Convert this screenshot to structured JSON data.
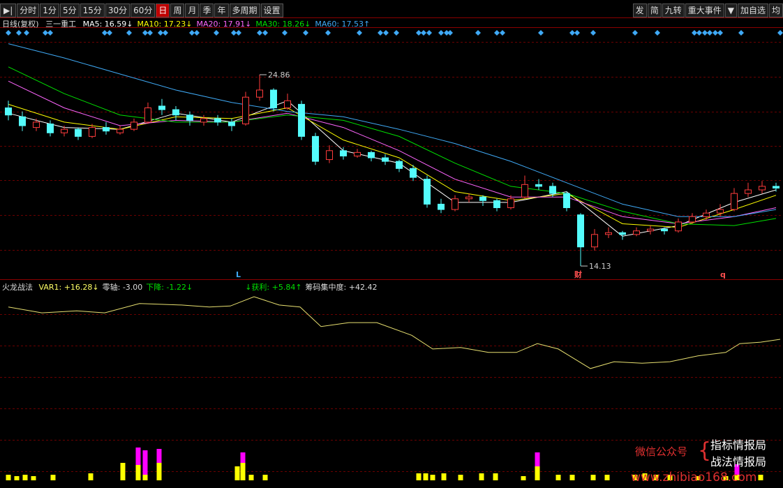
{
  "toolbar": {
    "left": [
      "分时",
      "1分",
      "5分",
      "15分",
      "30分",
      "60分",
      "日",
      "周",
      "月",
      "季",
      "年",
      "多周期",
      "设置"
    ],
    "active": "日",
    "right": [
      "发",
      "简",
      "九转",
      "重大事件",
      "加自选",
      "均"
    ]
  },
  "header": {
    "period": "日线(复权)",
    "stock": "三一重工",
    "ma_lines": [
      {
        "label": "MA5: 16.59↓",
        "color": "#ffffff",
        "values": [
          22.7,
          21.9,
          21.8,
          22.7,
          22.2,
          23.4,
          20.6,
          19.9,
          17.7,
          17.7,
          18.3,
          15.8,
          16.4,
          17.7,
          18.4
        ]
      },
      {
        "label": "MA10: 17.23↓",
        "color": "#ffff00",
        "values": [
          23.2,
          22.2,
          21.8,
          22.5,
          22.4,
          23.0,
          21.2,
          20.2,
          18.3,
          17.8,
          18.2,
          16.5,
          16.3,
          17.3,
          18.1
        ]
      },
      {
        "label": "MA20: 17.91↓",
        "color": "#ff66ff",
        "values": [
          24.5,
          23.0,
          22.0,
          22.3,
          22.2,
          22.7,
          21.9,
          20.6,
          19.0,
          18.0,
          18.0,
          16.9,
          16.5,
          16.9,
          17.4
        ]
      },
      {
        "label": "MA30: 18.26↓",
        "color": "#00e000",
        "values": [
          25.3,
          23.8,
          22.6,
          22.2,
          22.2,
          22.6,
          22.3,
          21.4,
          19.9,
          18.6,
          18.2,
          17.2,
          16.5,
          16.4,
          16.8
        ]
      },
      {
        "label": "MA60: 17.53↑",
        "color": "#3fa9f5",
        "values": [
          26.6,
          25.8,
          24.9,
          24.0,
          23.3,
          22.8,
          22.5,
          21.8,
          21.0,
          20.0,
          18.8,
          17.6,
          16.9,
          16.9,
          17.3
        ]
      }
    ]
  },
  "price_chart": {
    "ma_x": [
      0,
      4,
      8,
      12,
      16,
      20,
      24,
      28,
      32,
      36,
      40,
      44,
      48,
      52,
      55
    ],
    "ohlc": [
      [
        23.0,
        23.4,
        22.3,
        22.6
      ],
      [
        22.5,
        22.8,
        21.7,
        22.0
      ],
      [
        21.9,
        22.4,
        21.7,
        22.2
      ],
      [
        22.1,
        22.3,
        21.4,
        21.6
      ],
      [
        21.6,
        22.0,
        21.4,
        21.8
      ],
      [
        21.8,
        21.9,
        21.2,
        21.4
      ],
      [
        21.4,
        22.1,
        21.3,
        21.9
      ],
      [
        21.9,
        22.2,
        21.5,
        21.7
      ],
      [
        21.6,
        22.0,
        21.5,
        21.8
      ],
      [
        21.8,
        22.4,
        21.7,
        22.2
      ],
      [
        22.2,
        23.3,
        22.1,
        23.0
      ],
      [
        23.1,
        23.5,
        22.6,
        22.9
      ],
      [
        22.9,
        23.1,
        22.3,
        22.6
      ],
      [
        22.6,
        22.8,
        22.0,
        22.3
      ],
      [
        22.2,
        22.6,
        22.0,
        22.4
      ],
      [
        22.4,
        22.6,
        22.0,
        22.2
      ],
      [
        22.2,
        22.4,
        21.7,
        22.0
      ],
      [
        22.1,
        23.9,
        22.0,
        23.6
      ],
      [
        23.6,
        24.86,
        23.4,
        24.0
      ],
      [
        24.0,
        24.1,
        22.8,
        23.0
      ],
      [
        23.0,
        23.8,
        22.9,
        23.4
      ],
      [
        23.2,
        23.4,
        21.2,
        21.4
      ],
      [
        21.4,
        21.6,
        19.8,
        20.0
      ],
      [
        20.1,
        20.9,
        19.9,
        20.6
      ],
      [
        20.6,
        20.8,
        20.1,
        20.3
      ],
      [
        20.3,
        20.7,
        20.2,
        20.5
      ],
      [
        20.5,
        20.6,
        20.0,
        20.2
      ],
      [
        20.2,
        20.4,
        19.8,
        20.0
      ],
      [
        20.0,
        20.1,
        19.4,
        19.6
      ],
      [
        19.6,
        19.8,
        18.9,
        19.1
      ],
      [
        19.0,
        19.2,
        17.4,
        17.6
      ],
      [
        17.6,
        17.9,
        17.1,
        17.3
      ],
      [
        17.3,
        18.1,
        17.2,
        17.9
      ],
      [
        17.9,
        18.2,
        17.7,
        18.0
      ],
      [
        18.0,
        18.1,
        17.5,
        17.8
      ],
      [
        17.8,
        17.9,
        17.2,
        17.4
      ],
      [
        17.4,
        18.1,
        17.3,
        17.9
      ],
      [
        18.0,
        19.2,
        17.9,
        18.7
      ],
      [
        18.7,
        19.0,
        18.4,
        18.6
      ],
      [
        18.6,
        18.8,
        18.0,
        18.2
      ],
      [
        18.2,
        18.3,
        17.2,
        17.4
      ],
      [
        17.0,
        17.1,
        14.13,
        15.2
      ],
      [
        15.2,
        16.2,
        15.0,
        15.9
      ],
      [
        15.9,
        16.3,
        15.7,
        16.0
      ],
      [
        16.0,
        16.1,
        15.6,
        15.9
      ],
      [
        15.9,
        16.3,
        15.8,
        16.1
      ],
      [
        16.1,
        16.4,
        15.9,
        16.2
      ],
      [
        16.2,
        16.3,
        15.9,
        16.1
      ],
      [
        16.1,
        16.8,
        16.0,
        16.6
      ],
      [
        16.6,
        17.1,
        16.5,
        16.9
      ],
      [
        16.9,
        17.3,
        16.7,
        17.1
      ],
      [
        17.1,
        17.6,
        16.9,
        17.3
      ],
      [
        17.3,
        18.5,
        17.2,
        18.2
      ],
      [
        18.2,
        18.8,
        18.0,
        18.4
      ],
      [
        18.4,
        18.9,
        18.2,
        18.6
      ],
      [
        18.6,
        18.8,
        18.3,
        18.5
      ]
    ],
    "max_label": "24.86",
    "min_label": "14.13",
    "markers": [
      "L",
      "财",
      "q"
    ]
  },
  "indicator": {
    "name": "火龙战法",
    "labels": [
      "VAR1: +16.28↓",
      "零轴: -3.00",
      "下降: -1.22↓",
      "↓获利: +5.84↑",
      "筹码集中度: +42.42"
    ],
    "var1_x": [
      0,
      2.4,
      4.9,
      6.9,
      9.4,
      12.4,
      14.4,
      15.9,
      17.6,
      19.4,
      20.9,
      22.4,
      24.4,
      26.4,
      28.9,
      30.4,
      32.4,
      34.4,
      36.4,
      37.9,
      39.4,
      41.7,
      43.4,
      45.4,
      47.4,
      49.4,
      51.4,
      52.4,
      53.9,
      55.3
    ],
    "var1": [
      22.9,
      21.7,
      22.1,
      21.7,
      23.6,
      23.3,
      22.9,
      23.1,
      25.0,
      23.3,
      22.9,
      18.9,
      19.7,
      19.7,
      17.1,
      14.3,
      14.6,
      13.6,
      13.6,
      15.4,
      14.3,
      10.3,
      11.7,
      11.4,
      11.7,
      12.9,
      13.6,
      15.4,
      15.7,
      16.28
    ],
    "bar_x": [
      0,
      0.6,
      1.2,
      1.8,
      3.2,
      5.9,
      8.2,
      9.3,
      9.8,
      10.8,
      16.4,
      16.8,
      17.4,
      18.4,
      29.4,
      29.9,
      30.4,
      31.2,
      32.4,
      33.9,
      34.9,
      36.9,
      37.9,
      39.4,
      40.4,
      41.9,
      42.9,
      44.9,
      45.6,
      46.4,
      47.4,
      49.4,
      51.4,
      52.2,
      53.9
    ],
    "bar_yellow": [
      8,
      6,
      8,
      6,
      8,
      10,
      25,
      22,
      8,
      25,
      20,
      25,
      8,
      8,
      10,
      10,
      8,
      10,
      8,
      10,
      10,
      6,
      20,
      8,
      8,
      8,
      8,
      8,
      10,
      8,
      8,
      6,
      6,
      8,
      8
    ],
    "bar_magenta": [
      0,
      0,
      0,
      0,
      0,
      0,
      0,
      25,
      35,
      20,
      0,
      15,
      0,
      0,
      0,
      0,
      0,
      0,
      0,
      0,
      0,
      0,
      20,
      0,
      0,
      0,
      0,
      0,
      0,
      0,
      0,
      0,
      0,
      15,
      0
    ]
  },
  "watermark": {
    "account": "微信公众号",
    "names": [
      "指标情报局",
      "战法情报局"
    ],
    "url": "www.zhibiao168.com"
  }
}
